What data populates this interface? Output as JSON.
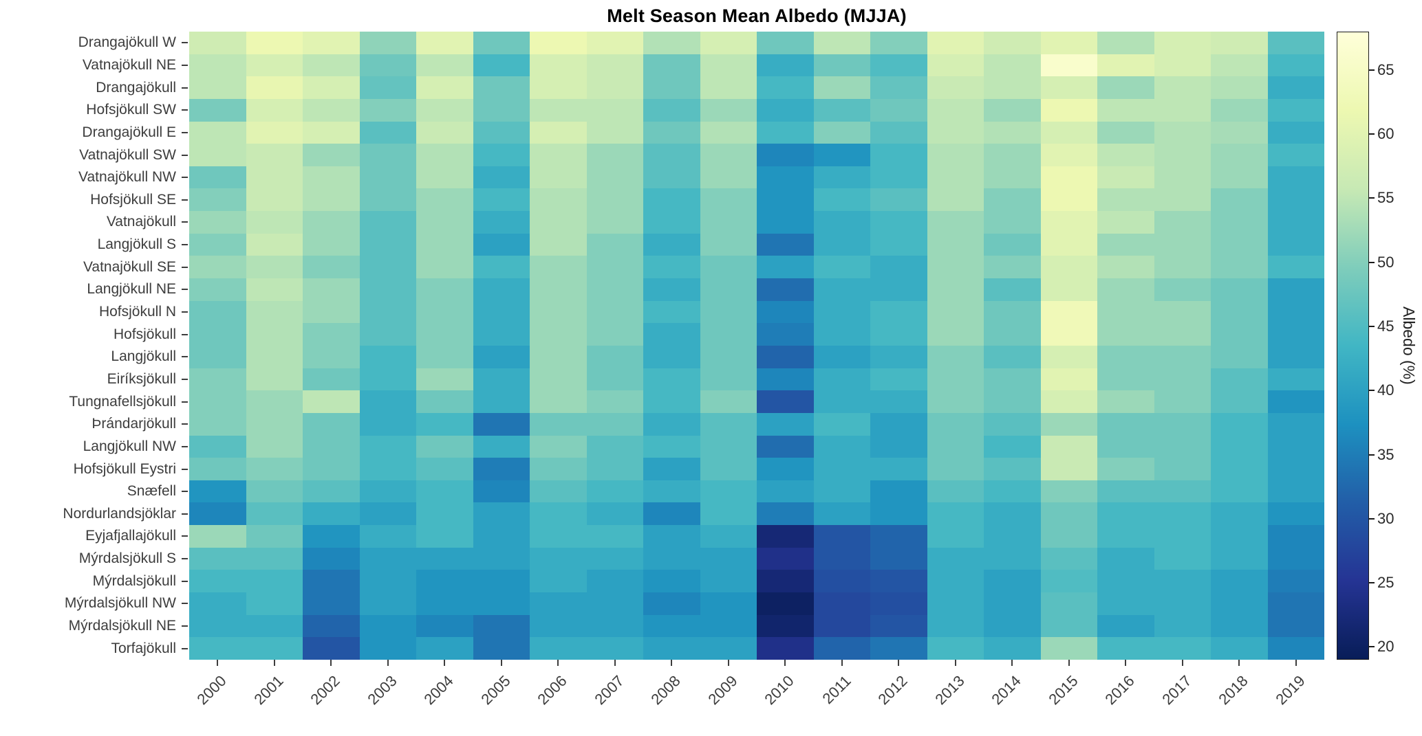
{
  "chart_data": {
    "type": "heatmap",
    "title": "Melt Season Mean Albedo (MJJA)",
    "colorbar_label": "Albedo (%)",
    "xlabel": "",
    "ylabel": "",
    "grid": false,
    "legend_position": "colorbar-right",
    "x": [
      2000,
      2001,
      2002,
      2003,
      2004,
      2005,
      2006,
      2007,
      2008,
      2009,
      2010,
      2011,
      2012,
      2013,
      2014,
      2015,
      2016,
      2017,
      2018,
      2019
    ],
    "vmin": 19,
    "vmax": 68,
    "colorbar_ticks": [
      65,
      60,
      55,
      50,
      45,
      40,
      35,
      30,
      25,
      20
    ],
    "colormap": {
      "name": "YlGnBu-reversed (light yellow = high albedo, dark navy = low albedo)",
      "positions": [
        0,
        0.125,
        0.25,
        0.375,
        0.5,
        0.625,
        0.75,
        0.875,
        1.0
      ],
      "colors": [
        "#ffffd9",
        "#edf8b1",
        "#c7e9b4",
        "#7fcdbb",
        "#41b6c4",
        "#1d91c0",
        "#225ea8",
        "#253494",
        "#081d58"
      ]
    },
    "rows": [
      {
        "name": "Drangajökull W",
        "values": [
          57,
          62,
          60,
          51,
          60,
          48,
          62,
          60,
          54,
          58,
          48,
          55,
          50,
          60,
          57,
          60,
          54,
          58,
          57,
          46
        ]
      },
      {
        "name": "Vatnajökull NE",
        "values": [
          55,
          58,
          55,
          48,
          55,
          44,
          58,
          56,
          48,
          55,
          42,
          48,
          45,
          58,
          55,
          66,
          60,
          58,
          55,
          44
        ]
      },
      {
        "name": "Drangajökull",
        "values": [
          55,
          61,
          58,
          47,
          58,
          48,
          58,
          56,
          48,
          55,
          44,
          52,
          47,
          56,
          55,
          58,
          52,
          55,
          54,
          42
        ]
      },
      {
        "name": "Hofsjökull SW",
        "values": [
          49,
          58,
          55,
          50,
          55,
          48,
          55,
          55,
          46,
          52,
          42,
          46,
          48,
          55,
          52,
          62,
          55,
          55,
          52,
          44
        ]
      },
      {
        "name": "Drangajökull E",
        "values": [
          55,
          60,
          58,
          46,
          56,
          46,
          58,
          55,
          48,
          54,
          44,
          50,
          46,
          55,
          54,
          58,
          52,
          54,
          53,
          42
        ]
      },
      {
        "name": "Vatnajökull SW",
        "values": [
          55,
          56,
          52,
          48,
          54,
          44,
          55,
          52,
          46,
          52,
          36,
          38,
          44,
          54,
          52,
          60,
          55,
          54,
          52,
          44
        ]
      },
      {
        "name": "Vatnajökull NW",
        "values": [
          48,
          56,
          54,
          48,
          54,
          42,
          55,
          52,
          46,
          52,
          38,
          42,
          44,
          54,
          52,
          62,
          56,
          54,
          52,
          42
        ]
      },
      {
        "name": "Hofsjökull SE",
        "values": [
          50,
          56,
          54,
          48,
          52,
          44,
          54,
          52,
          44,
          50,
          38,
          44,
          46,
          54,
          50,
          62,
          54,
          54,
          50,
          42
        ]
      },
      {
        "name": "Vatnajökull",
        "values": [
          52,
          55,
          52,
          46,
          52,
          42,
          54,
          52,
          44,
          50,
          38,
          42,
          44,
          52,
          50,
          60,
          55,
          52,
          50,
          42
        ]
      },
      {
        "name": "Langjökull S",
        "values": [
          50,
          56,
          52,
          46,
          52,
          40,
          54,
          50,
          42,
          50,
          34,
          42,
          44,
          52,
          48,
          60,
          52,
          52,
          50,
          42
        ]
      },
      {
        "name": "Vatnajökull SE",
        "values": [
          52,
          54,
          50,
          46,
          52,
          44,
          52,
          50,
          44,
          48,
          40,
          44,
          42,
          52,
          50,
          58,
          54,
          52,
          50,
          44
        ]
      },
      {
        "name": "Langjökull NE",
        "values": [
          50,
          55,
          52,
          46,
          50,
          42,
          52,
          50,
          42,
          48,
          33,
          42,
          42,
          52,
          46,
          58,
          52,
          50,
          48,
          40
        ]
      },
      {
        "name": "Hofsjökull N",
        "values": [
          48,
          54,
          52,
          46,
          50,
          42,
          52,
          50,
          44,
          48,
          36,
          42,
          44,
          52,
          48,
          63,
          52,
          52,
          48,
          40
        ]
      },
      {
        "name": "Hofsjökull",
        "values": [
          48,
          54,
          50,
          46,
          50,
          42,
          52,
          50,
          42,
          48,
          35,
          42,
          44,
          52,
          48,
          63,
          52,
          52,
          48,
          40
        ]
      },
      {
        "name": "Langjökull",
        "values": [
          48,
          54,
          50,
          44,
          50,
          40,
          52,
          48,
          42,
          48,
          32,
          40,
          42,
          50,
          46,
          58,
          50,
          50,
          48,
          40
        ]
      },
      {
        "name": "Eiríksjökull",
        "values": [
          50,
          54,
          48,
          44,
          52,
          42,
          52,
          48,
          44,
          48,
          36,
          42,
          44,
          50,
          48,
          60,
          50,
          50,
          46,
          42
        ]
      },
      {
        "name": "Tungnafellsjökull",
        "values": [
          50,
          52,
          55,
          42,
          48,
          42,
          52,
          50,
          44,
          50,
          30,
          42,
          42,
          50,
          48,
          58,
          52,
          50,
          46,
          38
        ]
      },
      {
        "name": "Þrándarjökull",
        "values": [
          50,
          52,
          48,
          42,
          44,
          34,
          48,
          48,
          42,
          46,
          40,
          44,
          40,
          48,
          46,
          52,
          48,
          48,
          44,
          40
        ]
      },
      {
        "name": "Langjökull NW",
        "values": [
          46,
          52,
          48,
          44,
          48,
          42,
          50,
          46,
          44,
          46,
          33,
          42,
          40,
          48,
          44,
          56,
          48,
          48,
          44,
          40
        ]
      },
      {
        "name": "Hofsjökull Eystri",
        "values": [
          48,
          50,
          48,
          44,
          46,
          35,
          48,
          46,
          40,
          46,
          38,
          42,
          42,
          48,
          46,
          56,
          50,
          48,
          44,
          40
        ]
      },
      {
        "name": "Snæfell",
        "values": [
          38,
          48,
          46,
          42,
          44,
          36,
          46,
          44,
          42,
          44,
          40,
          42,
          38,
          46,
          44,
          50,
          46,
          46,
          44,
          40
        ]
      },
      {
        "name": "Nordurlandsjöklar",
        "values": [
          36,
          46,
          42,
          40,
          44,
          40,
          44,
          42,
          36,
          44,
          35,
          40,
          38,
          44,
          42,
          48,
          44,
          44,
          42,
          38
        ]
      },
      {
        "name": "Eyjafjallajökull",
        "values": [
          52,
          48,
          38,
          42,
          44,
          40,
          44,
          44,
          40,
          42,
          22,
          30,
          32,
          44,
          42,
          48,
          44,
          44,
          42,
          36
        ]
      },
      {
        "name": "Mýrdalsjökull S",
        "values": [
          46,
          46,
          36,
          40,
          40,
          40,
          42,
          42,
          40,
          40,
          24,
          30,
          32,
          42,
          42,
          46,
          42,
          44,
          42,
          36
        ]
      },
      {
        "name": "Mýrdalsjökull",
        "values": [
          44,
          44,
          34,
          40,
          38,
          38,
          42,
          40,
          38,
          40,
          22,
          29,
          30,
          42,
          40,
          45,
          42,
          42,
          40,
          35
        ]
      },
      {
        "name": "Mýrdalsjökull NW",
        "values": [
          42,
          44,
          34,
          40,
          38,
          38,
          40,
          40,
          36,
          38,
          20,
          28,
          29,
          42,
          40,
          46,
          42,
          42,
          40,
          34
        ]
      },
      {
        "name": "Mýrdalsjökull NE",
        "values": [
          42,
          42,
          32,
          38,
          36,
          34,
          40,
          40,
          38,
          38,
          21,
          28,
          30,
          42,
          40,
          46,
          40,
          42,
          40,
          34
        ]
      },
      {
        "name": "Torfajökull",
        "values": [
          44,
          44,
          30,
          38,
          40,
          34,
          42,
          42,
          40,
          40,
          24,
          32,
          34,
          44,
          42,
          52,
          44,
          44,
          42,
          36
        ]
      }
    ]
  }
}
